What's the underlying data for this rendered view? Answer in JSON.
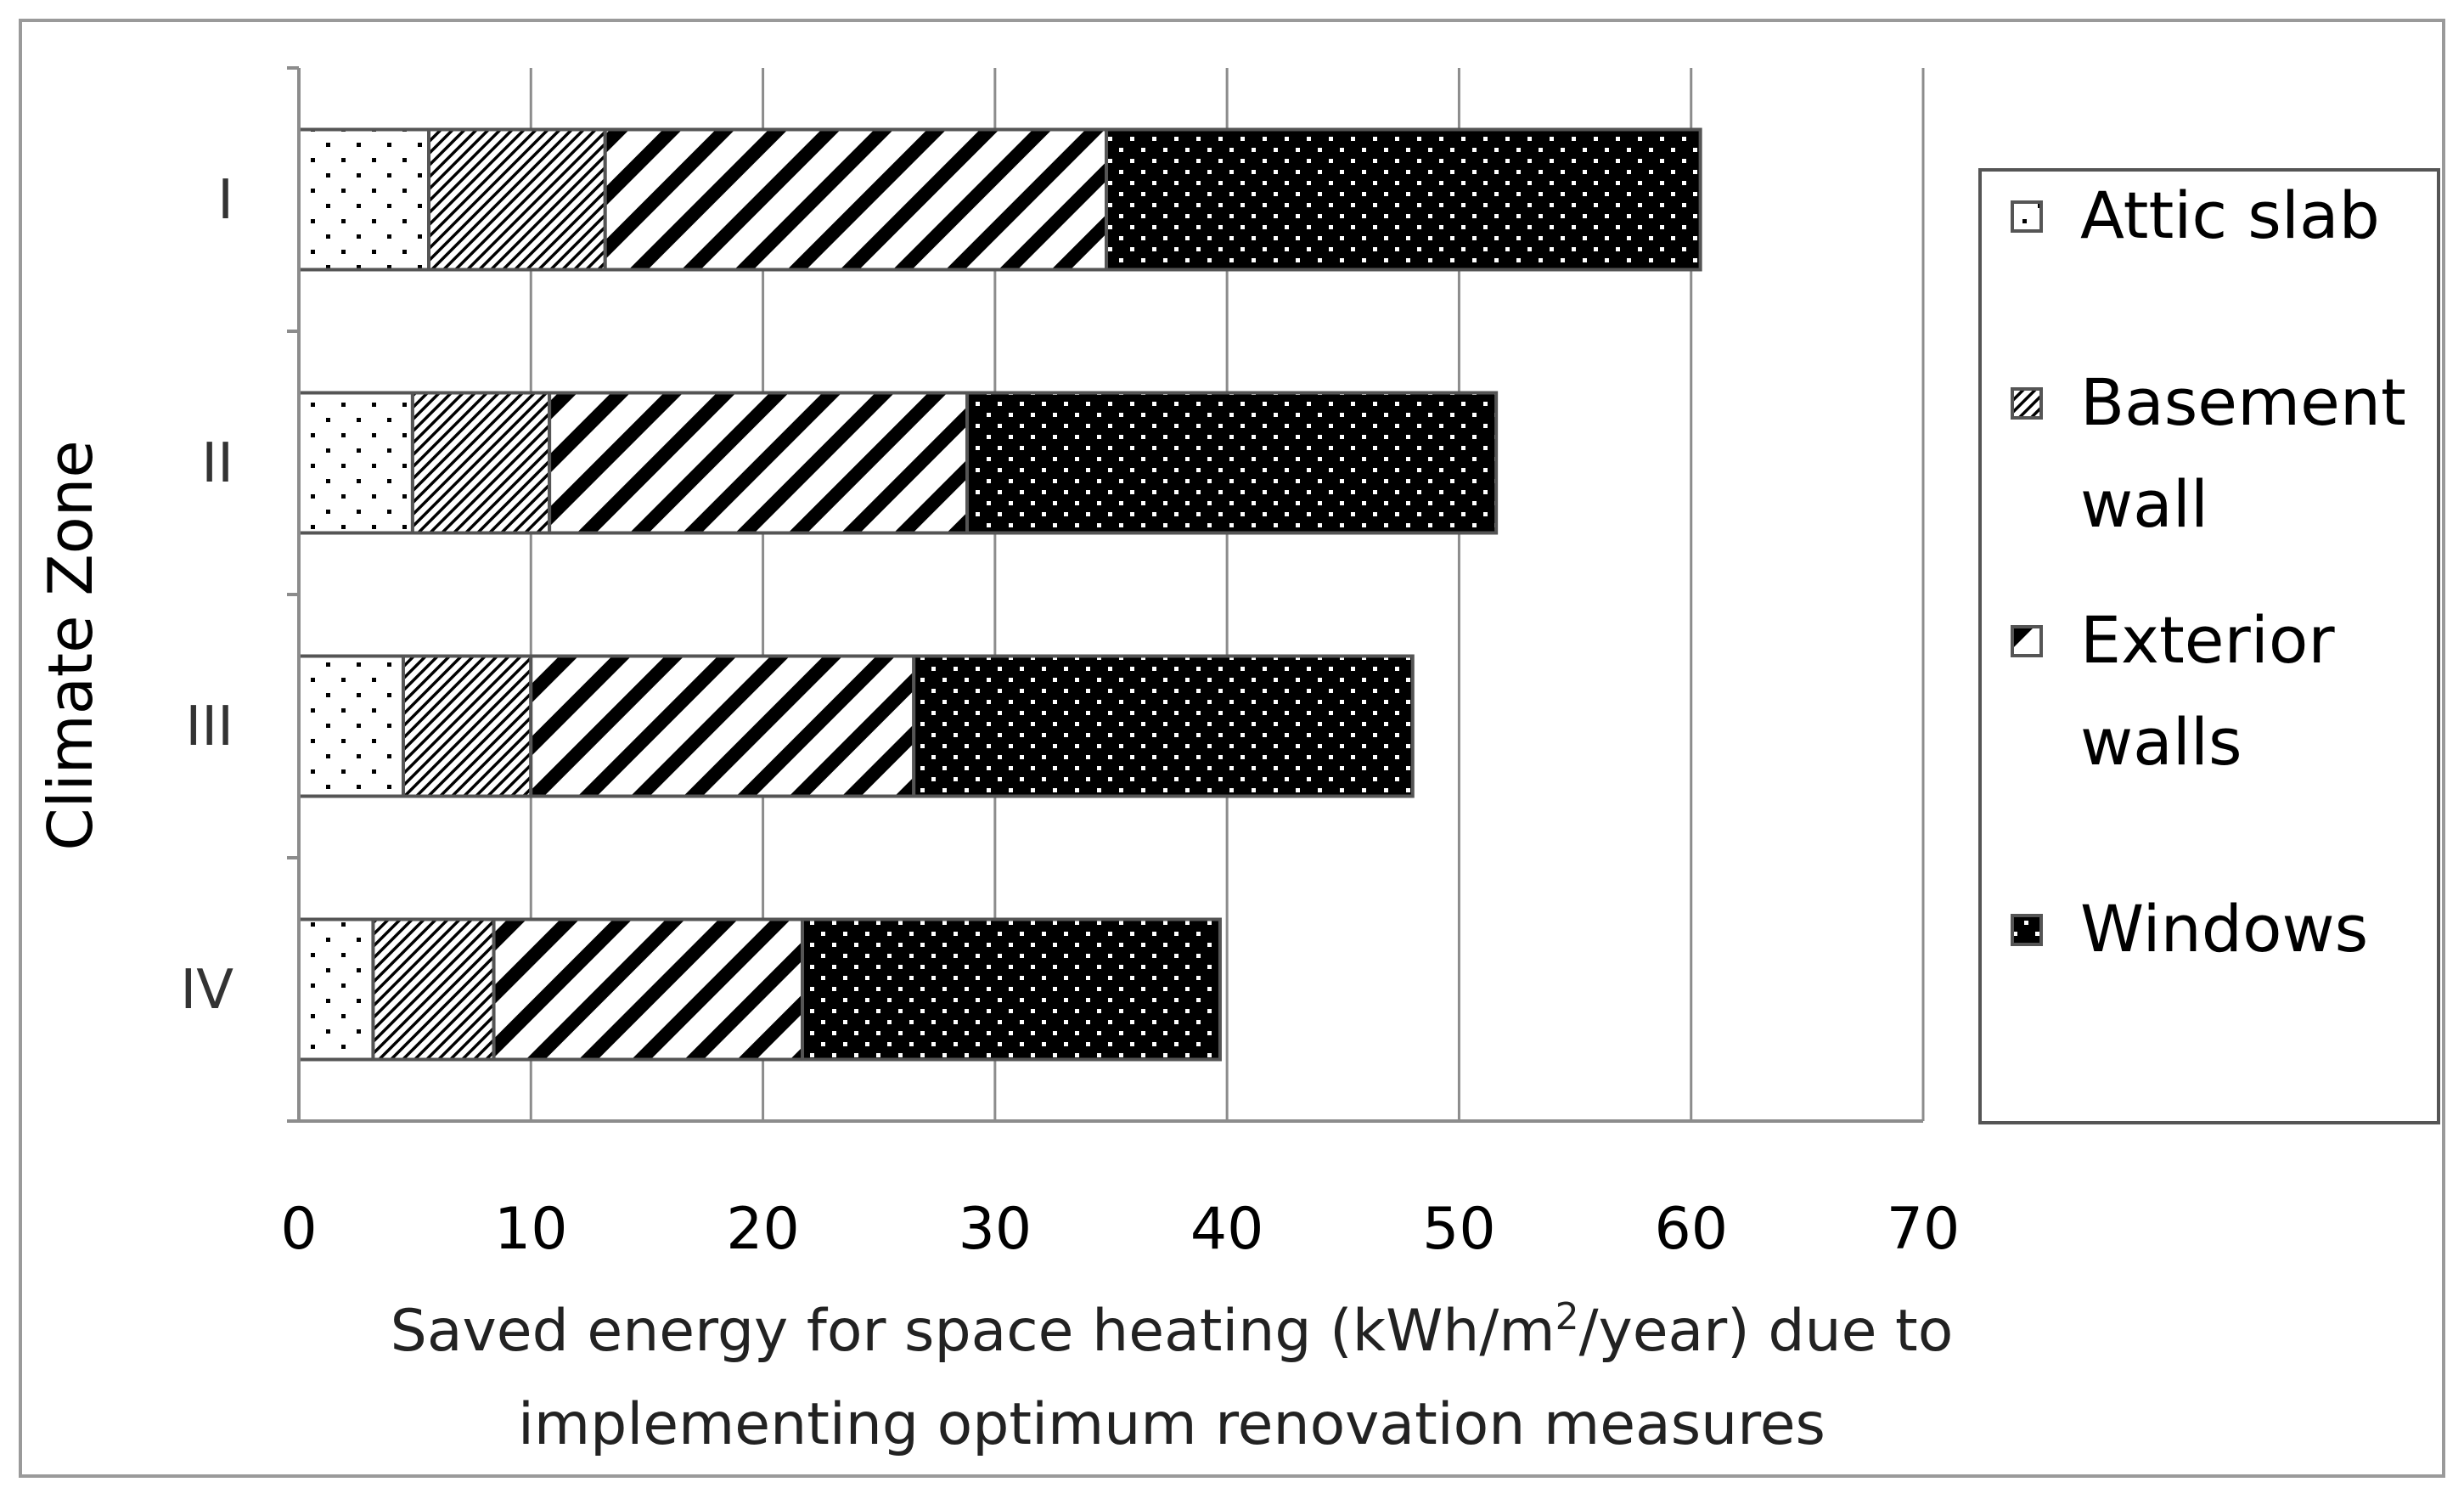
{
  "chart_data": {
    "type": "stacked-bar-horizontal",
    "categories": [
      "I",
      "II",
      "III",
      "IV"
    ],
    "series": [
      {
        "name": "Attic slab",
        "values": [
          5.6,
          4.9,
          4.5,
          3.2
        ],
        "pattern": "dots-sparse"
      },
      {
        "name": "Basement wall",
        "values": [
          7.6,
          5.9,
          5.5,
          5.2
        ],
        "pattern": "diag-fine"
      },
      {
        "name": "Exterior walls",
        "values": [
          21.6,
          18.0,
          16.5,
          13.3
        ],
        "pattern": "diag-bold"
      },
      {
        "name": "Windows",
        "values": [
          25.6,
          22.8,
          21.5,
          18.0
        ],
        "pattern": "dots-dark"
      }
    ],
    "legend_labels": [
      [
        "Attic slab"
      ],
      [
        "Basement",
        "wall"
      ],
      [
        "Exterior",
        "walls"
      ],
      [
        "Windows"
      ]
    ],
    "xlim": [
      0,
      70
    ],
    "xticks": [
      0,
      10,
      20,
      30,
      40,
      50,
      60,
      70
    ],
    "xlabel_line1_pre": "Saved energy for space heating (kWh/m",
    "xlabel_sup": "2",
    "xlabel_line1_post": "/year) due to",
    "xlabel_line2": "implementing optimum renovation measures",
    "ylabel": "Climate Zone",
    "grid": true,
    "legend_position": "right"
  },
  "colors": {
    "grid": "#8c8c8c",
    "axis": "#8c8c8c",
    "bar_outline": "#555555",
    "ink": "#000000"
  }
}
